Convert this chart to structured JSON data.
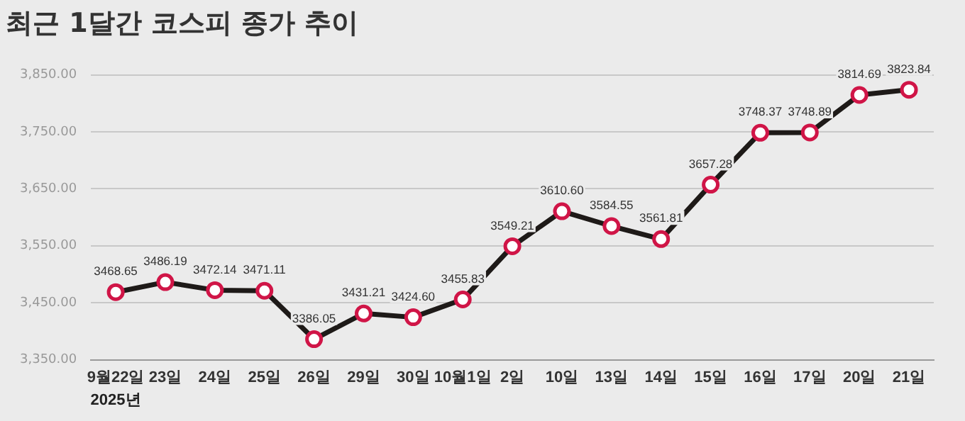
{
  "chart_data": {
    "type": "line",
    "title": "최근 1달간 코스피 종가 추이",
    "categories": [
      "9월22일",
      "23일",
      "24일",
      "25일",
      "26일",
      "29일",
      "30일",
      "10월1일",
      "2일",
      "10일",
      "13일",
      "14일",
      "15일",
      "16일",
      "17일",
      "20일",
      "21일"
    ],
    "series": [
      {
        "color": "#1e1a18",
        "values": [
          3468.65,
          3486.19,
          3472.14,
          3471.11,
          3386.05,
          3431.21,
          3424.6,
          3455.83,
          3549.21,
          3610.6,
          3584.55,
          3561.81,
          3657.28,
          3748.37,
          3748.89,
          3814.69,
          3823.84
        ],
        "value_labels": [
          "3468.65",
          "3486.19",
          "3472.14",
          "3471.11",
          "3386.05",
          "3431.21",
          "3424.60",
          "3455.83",
          "3549.21",
          "3610.60",
          "3584.55",
          "3561.81",
          "3657.28",
          "3748.37",
          "3748.89",
          "3814.69",
          "3823.84"
        ]
      }
    ],
    "ylim": [
      3350,
      3850
    ],
    "yticks": [
      {
        "value": 3350,
        "label": "3,350.00"
      },
      {
        "value": 3450,
        "label": "3,450.00"
      },
      {
        "value": 3550,
        "label": "3,550.00"
      },
      {
        "value": 3650,
        "label": "3,650.00"
      },
      {
        "value": 3750,
        "label": "3,750.00"
      },
      {
        "value": 3850,
        "label": "3,850.00"
      }
    ],
    "grid": "y",
    "legend": false,
    "marker": "circle",
    "annotations": [
      "2025년"
    ]
  }
}
